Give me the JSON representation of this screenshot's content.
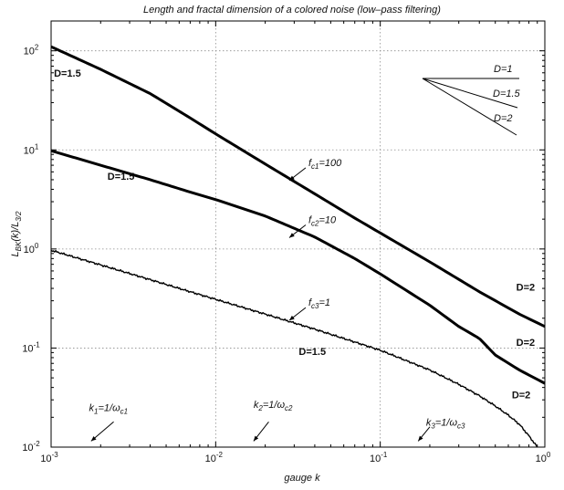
{
  "chart_data": {
    "type": "line",
    "title": "Length and fractal dimension of a colored noise (low–pass filtering)",
    "xlabel": "gauge k",
    "ylabel": "L_BK(k)/L_3/2",
    "x_scale": "log",
    "y_scale": "log",
    "xlim": [
      0.001,
      1
    ],
    "ylim": [
      0.01,
      200
    ],
    "grid": true,
    "x_ticks": [
      {
        "value": 0.001,
        "base": "10",
        "exp": "-3"
      },
      {
        "value": 0.01,
        "base": "10",
        "exp": "-2"
      },
      {
        "value": 0.1,
        "base": "10",
        "exp": "-1"
      },
      {
        "value": 1,
        "base": "10",
        "exp": "0"
      }
    ],
    "y_ticks": [
      {
        "value": 0.01,
        "base": "10",
        "exp": "-2"
      },
      {
        "value": 0.1,
        "base": "10",
        "exp": "-1"
      },
      {
        "value": 1,
        "base": "10",
        "exp": "0"
      },
      {
        "value": 10,
        "base": "10",
        "exp": "1"
      },
      {
        "value": 100,
        "base": "10",
        "exp": "2"
      }
    ],
    "series": [
      {
        "name": "f_c1=100",
        "line_width": 3,
        "noisy": false,
        "x": [
          0.001,
          0.002,
          0.004,
          0.007,
          0.01,
          0.02,
          0.04,
          0.07,
          0.1,
          0.2,
          0.4,
          0.7,
          1.0
        ],
        "y": [
          110,
          65,
          37,
          21,
          14.5,
          7.2,
          3.6,
          2.05,
          1.45,
          0.74,
          0.37,
          0.22,
          0.165
        ]
      },
      {
        "name": "f_c2=10",
        "line_width": 3,
        "noisy": false,
        "x": [
          0.001,
          0.002,
          0.004,
          0.007,
          0.01,
          0.02,
          0.04,
          0.07,
          0.1,
          0.2,
          0.3,
          0.4,
          0.5,
          0.7,
          1.0
        ],
        "y": [
          9.8,
          7.0,
          5.0,
          3.75,
          3.15,
          2.15,
          1.32,
          0.8,
          0.56,
          0.27,
          0.165,
          0.125,
          0.085,
          0.06,
          0.044
        ]
      },
      {
        "name": "f_c3=1",
        "line_width": 1.4,
        "noisy": true,
        "x": [
          0.001,
          0.002,
          0.004,
          0.007,
          0.01,
          0.02,
          0.04,
          0.07,
          0.1,
          0.2,
          0.3,
          0.4,
          0.5,
          0.6,
          0.7,
          0.8,
          0.9
        ],
        "y": [
          0.97,
          0.69,
          0.49,
          0.37,
          0.31,
          0.22,
          0.155,
          0.115,
          0.095,
          0.06,
          0.043,
          0.033,
          0.026,
          0.021,
          0.017,
          0.013,
          0.01
        ]
      }
    ],
    "curve_labels": [
      {
        "text": "f",
        "sub": "c1",
        "suffix": "=100",
        "arrow_to": [
          0.028,
          4.9
        ]
      },
      {
        "text": "f",
        "sub": "c2",
        "suffix": "=10",
        "arrow_to": [
          0.028,
          1.3
        ]
      },
      {
        "text": "f",
        "sub": "c3",
        "suffix": "=1",
        "arrow_to": [
          0.028,
          0.19
        ]
      }
    ],
    "dimension_labels": [
      {
        "text": "D=1.5",
        "at": [
          0.00104,
          55
        ]
      },
      {
        "text": "D=1.5",
        "at": [
          0.0022,
          5.0
        ]
      },
      {
        "text": "D=1.5",
        "at": [
          0.032,
          0.085
        ]
      },
      {
        "text": "D=2",
        "at": [
          0.67,
          0.38
        ]
      },
      {
        "text": "D=2",
        "at": [
          0.67,
          0.105
        ]
      },
      {
        "text": "D=2",
        "at": [
          0.63,
          0.031
        ]
      }
    ],
    "cutoff_labels": [
      {
        "k": "k",
        "ksub": "1",
        "mid": "=1/ω",
        "wsub": "c1",
        "arrow_from": [
          0.0024,
          0.018
        ],
        "arrow_to": [
          0.00175,
          0.0115
        ],
        "label_at": [
          0.0017,
          0.023
        ]
      },
      {
        "k": "k",
        "ksub": "2",
        "mid": "=1/ω",
        "wsub": "c2",
        "arrow_from": [
          0.021,
          0.018
        ],
        "arrow_to": [
          0.017,
          0.0115
        ],
        "label_at": [
          0.017,
          0.025
        ]
      },
      {
        "k": "k",
        "ksub": "3",
        "mid": "=1/ω",
        "wsub": "c3",
        "arrow_from": [
          0.2,
          0.016
        ],
        "arrow_to": [
          0.17,
          0.0115
        ],
        "label_at": [
          0.19,
          0.0165
        ]
      }
    ],
    "inset_legend": [
      {
        "text": "D=1"
      },
      {
        "text": "D=1.5"
      },
      {
        "text": "D=2"
      }
    ]
  }
}
